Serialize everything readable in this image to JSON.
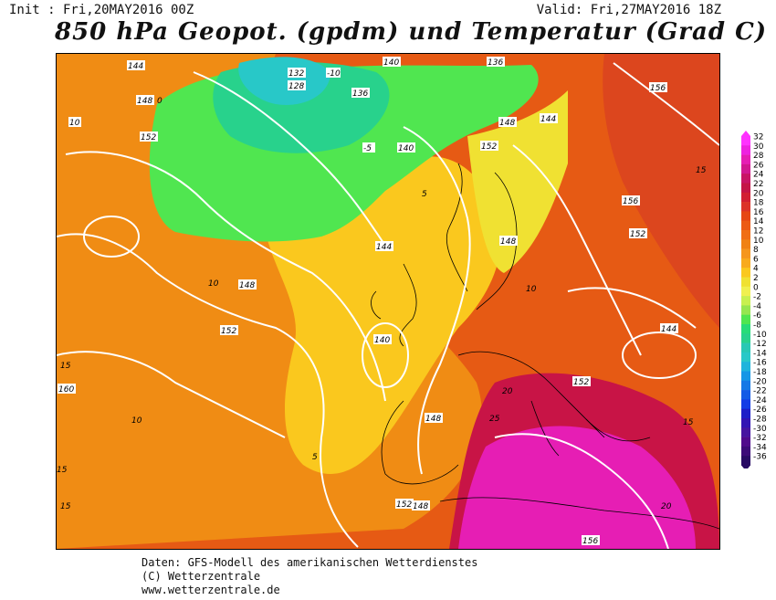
{
  "header": {
    "init": "Init : Fri,20MAY2016 00Z",
    "valid": "Valid: Fri,27MAY2016 18Z",
    "title": "850 hPa Geopot. (gpdm) und Temperatur (Grad C)"
  },
  "map": {
    "description_colors": {
      "very_hot": "#e61eb4",
      "hot": "#c81446",
      "warm": "#e65014",
      "mild": "#f08c14",
      "moderate": "#fac81e",
      "cool": "#f0f050",
      "cold": "#50e650",
      "colder": "#28d28c",
      "coldest": "#28c8c8"
    },
    "geopotential_labels": [
      "144",
      "148",
      "152",
      "160",
      "132",
      "128",
      "136",
      "140",
      "156",
      "148",
      "152",
      "144",
      "140",
      "136",
      "144",
      "148",
      "152",
      "156",
      "152",
      "144",
      "140",
      "148",
      "152",
      "148",
      "148",
      "152",
      "156"
    ],
    "temperature_labels": [
      "0",
      "10",
      "5",
      "-10",
      "-5",
      "10",
      "15",
      "20",
      "25",
      "15",
      "10",
      "5",
      "15",
      "20",
      "15",
      "10",
      "15"
    ]
  },
  "legend": {
    "ticks": [
      "32",
      "30",
      "28",
      "26",
      "24",
      "22",
      "20",
      "18",
      "16",
      "14",
      "12",
      "10",
      "8",
      "6",
      "4",
      "2",
      "0",
      "-2",
      "-4",
      "-6",
      "-8",
      "-10",
      "-12",
      "-14",
      "-16",
      "-18",
      "-20",
      "-22",
      "-24",
      "-26",
      "-28",
      "-30",
      "-32",
      "-34",
      "-36"
    ],
    "colors": [
      "#ff32ff",
      "#ee22e0",
      "#e61eb4",
      "#d21890",
      "#c81464",
      "#c41446",
      "#d21e32",
      "#dc3228",
      "#e64614",
      "#ec5a14",
      "#f06e14",
      "#f08214",
      "#f5961e",
      "#f8aa1e",
      "#fac81e",
      "#f0e132",
      "#f0f050",
      "#c8f050",
      "#96e650",
      "#50e650",
      "#28dc78",
      "#28d28c",
      "#28c8b4",
      "#28c8c8",
      "#1eb4dc",
      "#1496e6",
      "#1478e6",
      "#145ae6",
      "#143ce6",
      "#1e1ec8",
      "#3214b4",
      "#4614a0",
      "#500a8c",
      "#3c0a78",
      "#280a64"
    ]
  },
  "footer": {
    "line1": "Daten: GFS-Modell des amerikanischen Wetterdienstes",
    "line2": "(C) Wetterzentrale",
    "line3": "www.wetterzentrale.de"
  }
}
